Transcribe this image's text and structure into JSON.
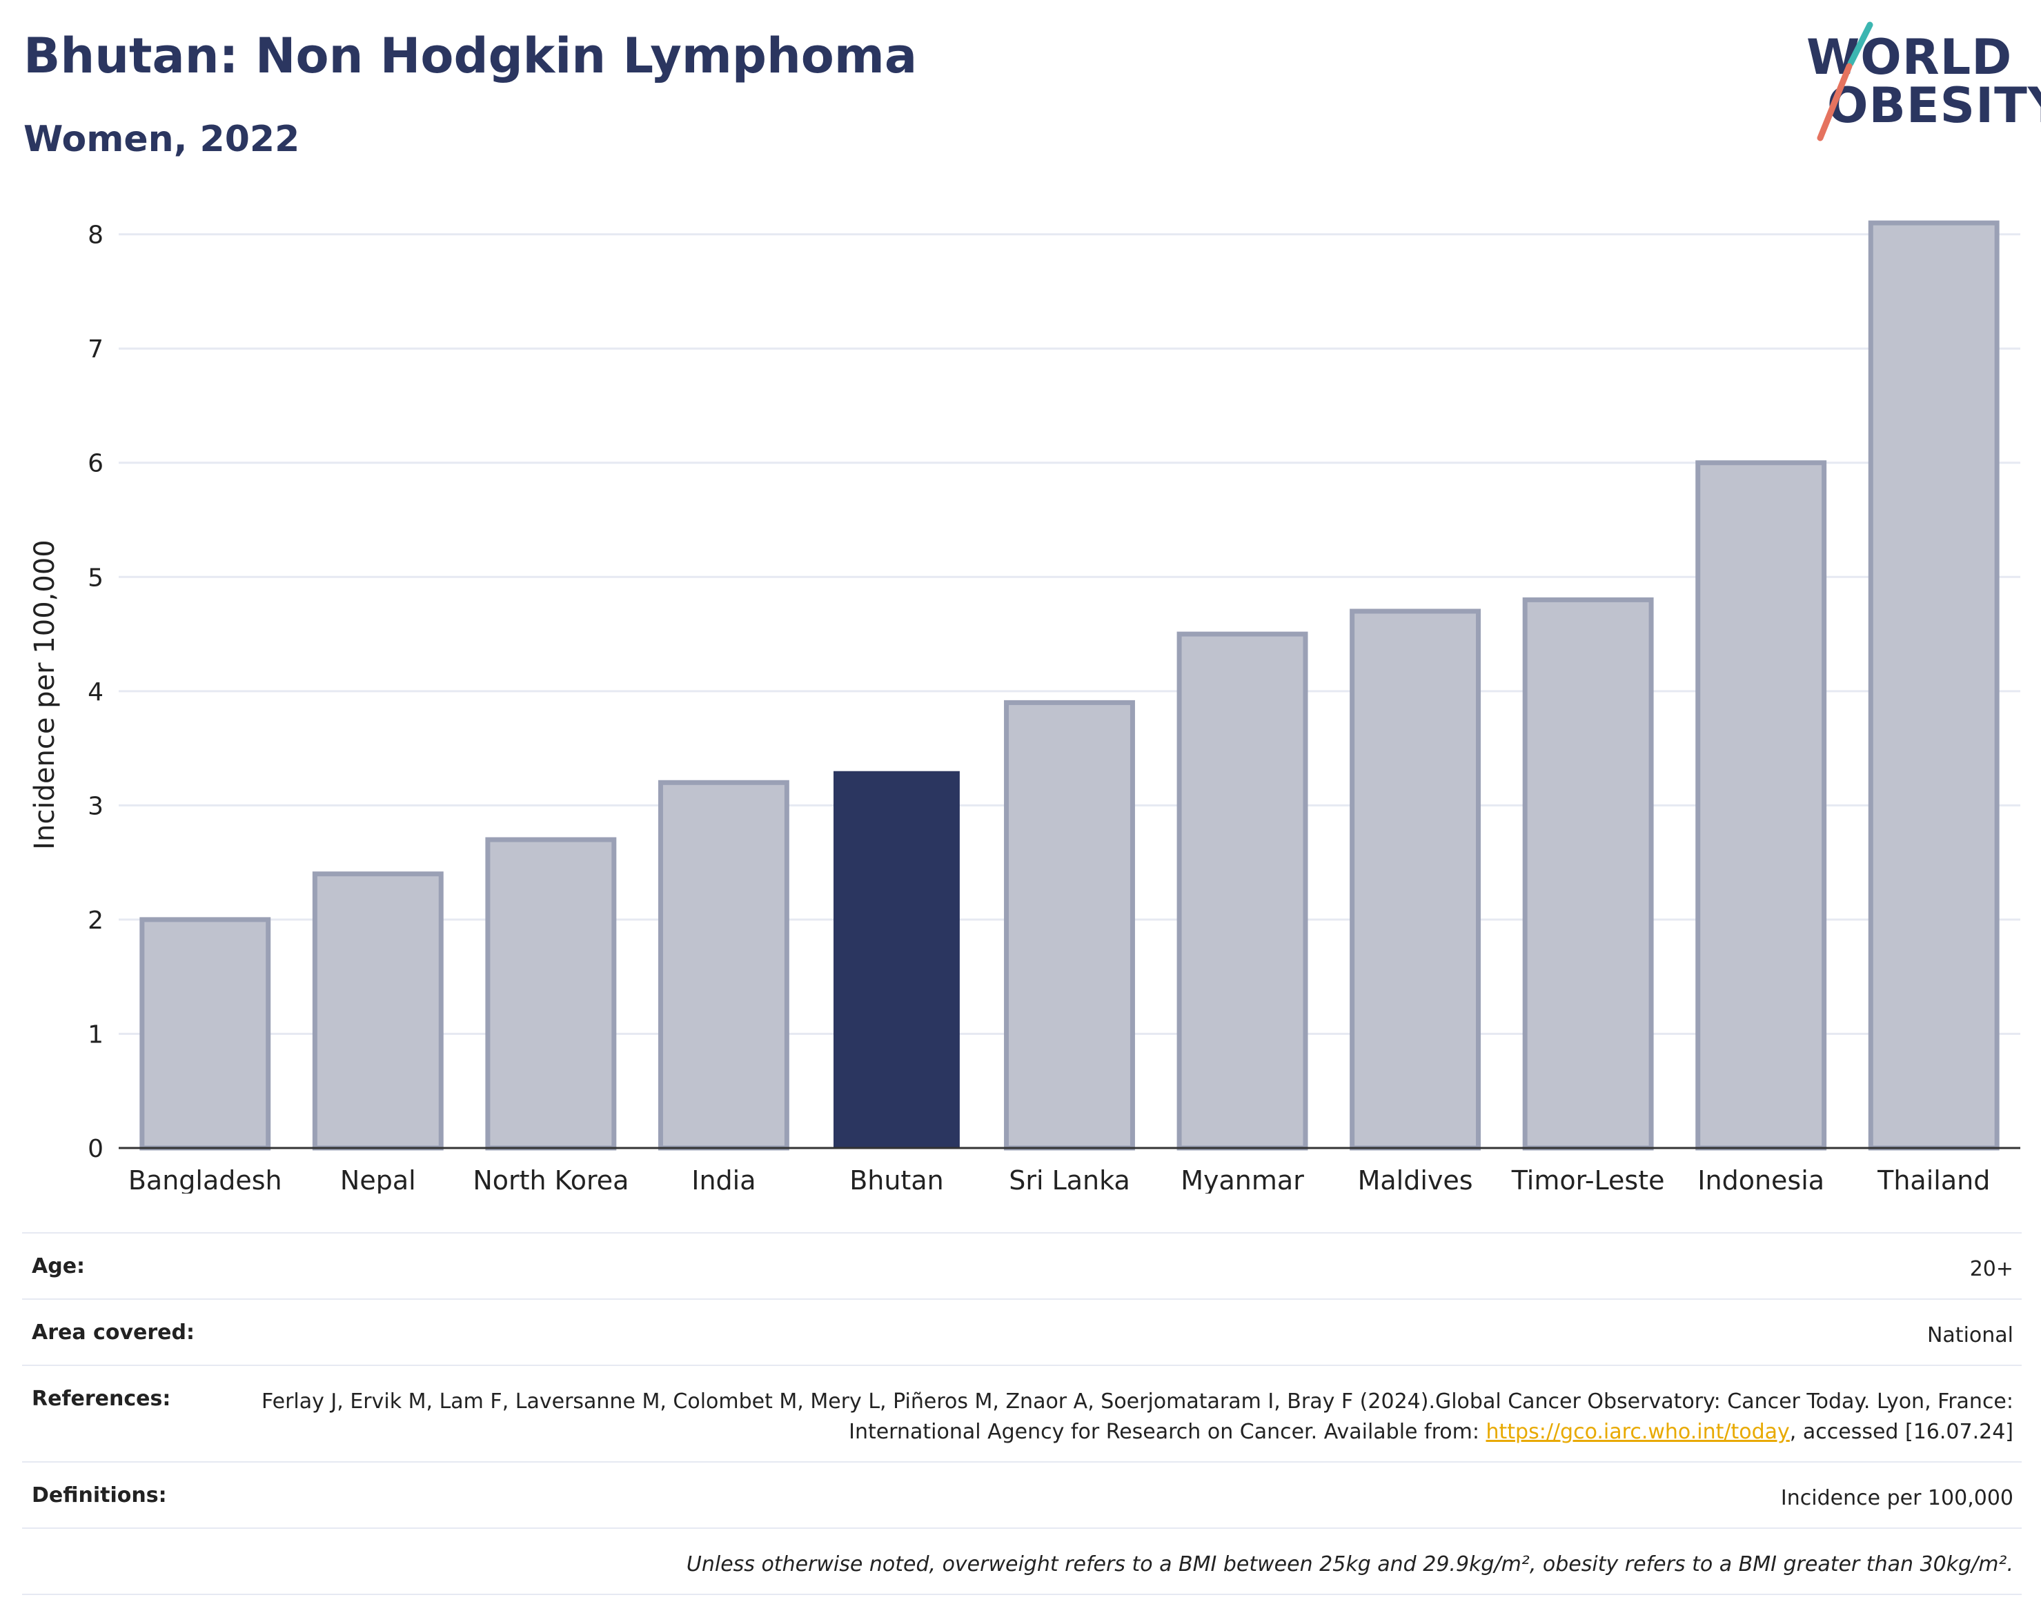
{
  "header": {
    "title": "Bhutan: Non Hodgkin Lymphoma",
    "subtitle": "Women, 2022"
  },
  "logo": {
    "line1": "WORLD",
    "line2": "OBESITY",
    "accent_teal": "#3cb6b1",
    "accent_coral": "#e5735f"
  },
  "colors": {
    "highlight": "#2b3660",
    "others": "#bfc2ce",
    "others_border": "#9aa0b5",
    "grid": "#e6e9f2",
    "axis": "#333333"
  },
  "chart_data": {
    "type": "bar",
    "categories": [
      "Bangladesh",
      "Nepal",
      "North Korea",
      "India",
      "Bhutan",
      "Sri Lanka",
      "Myanmar",
      "Maldives",
      "Timor-Leste",
      "Indonesia",
      "Thailand"
    ],
    "values": [
      2.0,
      2.4,
      2.7,
      3.2,
      3.3,
      3.9,
      4.5,
      4.7,
      4.8,
      6.0,
      8.1
    ],
    "highlight": "Bhutan",
    "ylabel": "Incidence per 100,000",
    "ylim": [
      0,
      8.3
    ],
    "yticks": [
      0,
      1,
      2,
      3,
      4,
      5,
      6,
      7,
      8
    ],
    "grid": true
  },
  "info": {
    "age_label": "Age:",
    "age_value": "20+",
    "area_label": "Area covered:",
    "area_value": "National",
    "references_label": "References:",
    "references_text": "Ferlay J, Ervik M, Lam F, Laversanne M, Colombet M, Mery L, Piñeros M, Znaor A, Soerjomataram I, Bray F (2024).Global Cancer Observatory: Cancer Today. Lyon, France: International Agency for Research on Cancer. Available from: ",
    "references_link": "https://gco.iarc.who.int/today",
    "references_tail": ", accessed [16.07.24]",
    "definitions_label": "Definitions:",
    "definitions_value": "Incidence per 100,000",
    "note": "Unless otherwise noted, overweight refers to a BMI between 25kg and 29.9kg/m², obesity refers to a BMI greater than 30kg/m²."
  }
}
